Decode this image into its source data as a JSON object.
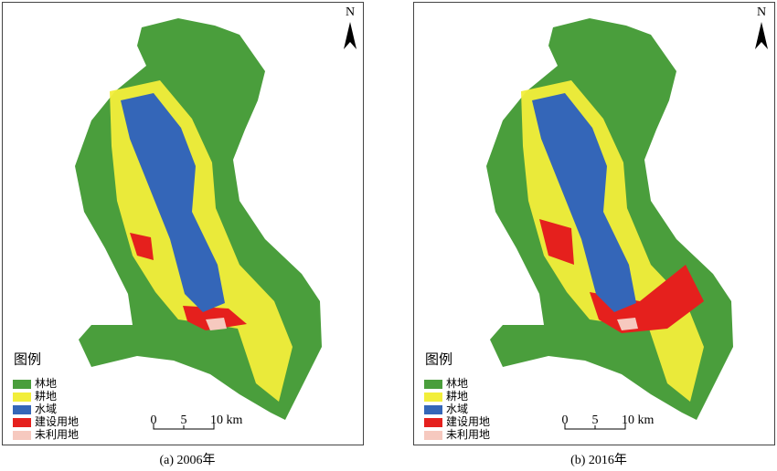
{
  "panels": [
    {
      "caption": "(a) 2006年",
      "north": "N",
      "legend": {
        "title": "图例",
        "items": [
          {
            "label": "林地",
            "color": "#4a9e3c"
          },
          {
            "label": "耕地",
            "color": "#f2ee3a"
          },
          {
            "label": "水域",
            "color": "#3466b8"
          },
          {
            "label": "建设用地",
            "color": "#e5201d"
          },
          {
            "label": "未利用地",
            "color": "#f6c9bf"
          }
        ]
      },
      "scale_bar": {
        "labels": [
          "0",
          "5",
          "10 km"
        ]
      }
    },
    {
      "caption": "(b) 2016年",
      "north": "N",
      "legend": {
        "title": "图例",
        "items": [
          {
            "label": "林地",
            "color": "#4a9e3c"
          },
          {
            "label": "耕地",
            "color": "#f2ee3a"
          },
          {
            "label": "水域",
            "color": "#3466b8"
          },
          {
            "label": "建设用地",
            "color": "#e5201d"
          },
          {
            "label": "未利用地",
            "color": "#f6c9bf"
          }
        ]
      },
      "scale_bar": {
        "labels": [
          "0",
          "5",
          "10 km"
        ]
      }
    }
  ]
}
